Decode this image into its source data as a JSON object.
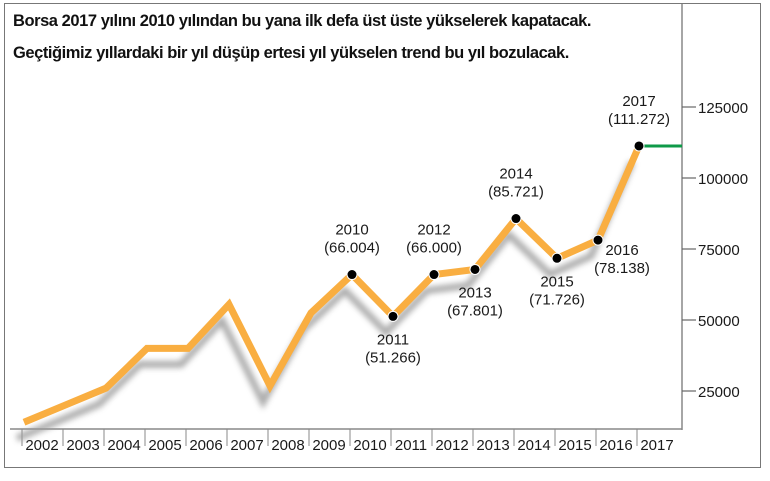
{
  "chart_data": {
    "type": "line",
    "title": "Borsa 2017 yılını 2010 yılından bu yana ilk defa üst üste yükselerek kapatacak.",
    "subtitle": "Geçtiğimiz yıllardaki bir yıl düşüp ertesi yıl yükselen trend bu yıl bozulacak.",
    "categories": [
      "2002",
      "2003",
      "2004",
      "2005",
      "2006",
      "2007",
      "2008",
      "2009",
      "2010",
      "2011",
      "2012",
      "2013",
      "2014",
      "2015",
      "2016",
      "2017"
    ],
    "values": [
      14000,
      20000,
      26000,
      40000,
      40000,
      55500,
      26800,
      52500,
      66004,
      51266,
      66000,
      67801,
      85721,
      71726,
      78138,
      111272
    ],
    "data_labels": [
      {
        "year": "2010",
        "value": "(66.004)",
        "position": "above"
      },
      {
        "year": "2011",
        "value": "(51.266)",
        "position": "below"
      },
      {
        "year": "2012",
        "value": "(66.000)",
        "position": "above"
      },
      {
        "year": "2013",
        "value": "(67.801)",
        "position": "below"
      },
      {
        "year": "2014",
        "value": "(85.721)",
        "position": "above"
      },
      {
        "year": "2015",
        "value": "(71.726)",
        "position": "below"
      },
      {
        "year": "2016",
        "value": "(78.138)",
        "position": "right"
      },
      {
        "year": "2017",
        "value": "(111.272)",
        "position": "above"
      }
    ],
    "y_axis": {
      "side": "right",
      "ticks": [
        25000,
        50000,
        75000,
        100000,
        125000
      ],
      "tick_labels": [
        "25000",
        "50000",
        "75000",
        "100000",
        "125000"
      ]
    },
    "xlabel": "",
    "ylabel": "",
    "grid": false,
    "colors": {
      "line": "#f9ae41",
      "marker": "#000000",
      "reference_line": "#0e9a48",
      "shadow": "#9a9a9a"
    },
    "reference_line": {
      "value": 111272
    }
  }
}
